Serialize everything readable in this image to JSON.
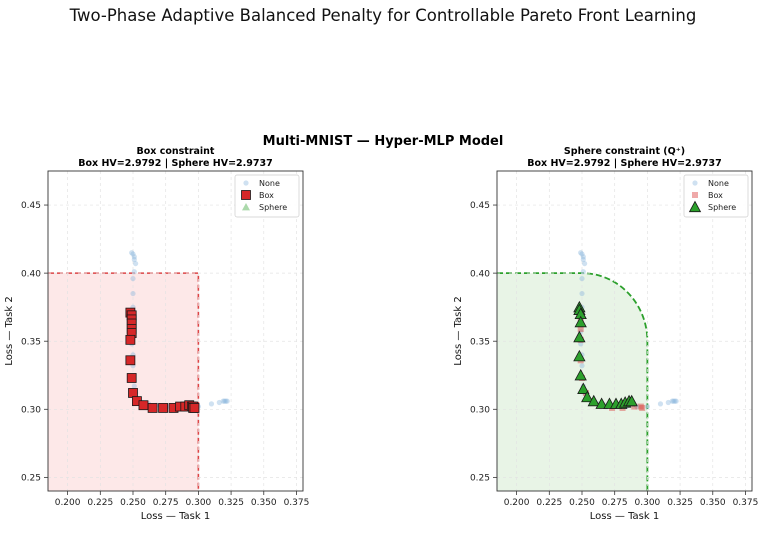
{
  "page_title": "Two-Phase Adaptive Balanced Penalty for Controllable Pareto Front Learning",
  "suptitle": "Multi-MNIST — Hyper-MLP Model",
  "colors": {
    "none": "#86b4db",
    "box": "#d62728",
    "sphere": "#2ca02c",
    "box_region": "#fde8e8",
    "sphere_region": "#e8f4e6"
  },
  "chart_data": [
    {
      "type": "scatter",
      "title": "Box constraint",
      "subtitle": "Box HV=2.9792  |  Sphere HV=2.9737",
      "xlabel": "Loss — Task 1",
      "ylabel": "Loss — Task 2",
      "xlim": [
        0.185,
        0.38
      ],
      "ylim": [
        0.24,
        0.475
      ],
      "xticks": [
        "0.200",
        "0.225",
        "0.250",
        "0.275",
        "0.300",
        "0.325",
        "0.350",
        "0.375"
      ],
      "yticks": [
        "0.25",
        "0.30",
        "0.35",
        "0.40",
        "0.45"
      ],
      "grid": true,
      "legend_position": "top-right",
      "region": {
        "shape": "box",
        "x_max": 0.3,
        "y_max": 0.4
      },
      "legend": [
        {
          "label": "None",
          "marker": "circle"
        },
        {
          "label": "Box",
          "marker": "square"
        },
        {
          "label": "Sphere",
          "marker": "triangle"
        }
      ],
      "series": [
        {
          "name": "None",
          "marker": "circle",
          "style": "faded",
          "x": [
            0.249,
            0.25,
            0.251,
            0.251,
            0.252,
            0.251,
            0.25,
            0.25,
            0.25,
            0.249,
            0.249,
            0.249,
            0.25,
            0.25,
            0.25,
            0.251,
            0.252,
            0.254,
            0.257,
            0.262,
            0.268,
            0.276,
            0.284,
            0.292,
            0.3,
            0.31,
            0.316,
            0.319,
            0.32,
            0.321,
            0.322
          ],
          "y": [
            0.415,
            0.414,
            0.412,
            0.41,
            0.407,
            0.401,
            0.396,
            0.385,
            0.375,
            0.366,
            0.357,
            0.348,
            0.34,
            0.332,
            0.324,
            0.317,
            0.312,
            0.308,
            0.305,
            0.304,
            0.303,
            0.302,
            0.302,
            0.302,
            0.302,
            0.304,
            0.305,
            0.306,
            0.306,
            0.306,
            0.306
          ]
        },
        {
          "name": "Box",
          "marker": "square",
          "style": "highlight",
          "x": [
            0.248,
            0.249,
            0.249,
            0.249,
            0.249,
            0.249,
            0.248,
            0.248,
            0.249,
            0.25,
            0.253,
            0.258,
            0.265,
            0.273,
            0.281,
            0.286,
            0.29,
            0.293,
            0.295,
            0.296,
            0.296,
            0.297
          ],
          "y": [
            0.371,
            0.369,
            0.366,
            0.363,
            0.359,
            0.356,
            0.351,
            0.336,
            0.323,
            0.312,
            0.306,
            0.303,
            0.301,
            0.301,
            0.301,
            0.302,
            0.302,
            0.303,
            0.302,
            0.302,
            0.301,
            0.301
          ]
        }
      ]
    },
    {
      "type": "scatter",
      "title": "Sphere constraint  (Q⁺)",
      "subtitle": "Box HV=2.9792  |  Sphere HV=2.9737",
      "xlabel": "Loss — Task 1",
      "ylabel": "Loss — Task 2",
      "xlim": [
        0.185,
        0.38
      ],
      "ylim": [
        0.24,
        0.475
      ],
      "xticks": [
        "0.200",
        "0.225",
        "0.250",
        "0.275",
        "0.300",
        "0.325",
        "0.350",
        "0.375"
      ],
      "yticks": [
        "0.25",
        "0.30",
        "0.35",
        "0.40",
        "0.45"
      ],
      "grid": true,
      "legend_position": "top-right",
      "region": {
        "shape": "sphere",
        "x_max": 0.3,
        "y_max": 0.4,
        "corner": [
          0.25,
          0.35
        ]
      },
      "legend": [
        {
          "label": "None",
          "marker": "circle"
        },
        {
          "label": "Box",
          "marker": "square"
        },
        {
          "label": "Sphere",
          "marker": "triangle"
        }
      ],
      "series": [
        {
          "name": "None",
          "marker": "circle",
          "style": "faded",
          "x": [
            0.249,
            0.25,
            0.251,
            0.251,
            0.252,
            0.251,
            0.25,
            0.25,
            0.25,
            0.249,
            0.249,
            0.249,
            0.25,
            0.25,
            0.25,
            0.251,
            0.252,
            0.254,
            0.257,
            0.262,
            0.268,
            0.276,
            0.284,
            0.292,
            0.3,
            0.31,
            0.316,
            0.319,
            0.32,
            0.321,
            0.322
          ],
          "y": [
            0.415,
            0.414,
            0.412,
            0.41,
            0.407,
            0.401,
            0.396,
            0.385,
            0.375,
            0.366,
            0.357,
            0.348,
            0.34,
            0.332,
            0.324,
            0.317,
            0.312,
            0.308,
            0.305,
            0.304,
            0.303,
            0.302,
            0.302,
            0.302,
            0.302,
            0.304,
            0.305,
            0.306,
            0.306,
            0.306,
            0.306
          ]
        },
        {
          "name": "Box",
          "marker": "square",
          "style": "faded",
          "x": [
            0.248,
            0.249,
            0.249,
            0.249,
            0.249,
            0.25,
            0.253,
            0.258,
            0.265,
            0.273,
            0.281,
            0.29,
            0.295,
            0.296
          ],
          "y": [
            0.371,
            0.366,
            0.359,
            0.351,
            0.336,
            0.323,
            0.312,
            0.306,
            0.303,
            0.301,
            0.301,
            0.302,
            0.302,
            0.301
          ]
        },
        {
          "name": "Sphere",
          "marker": "triangle",
          "style": "highlight",
          "x": [
            0.248,
            0.248,
            0.249,
            0.249,
            0.248,
            0.248,
            0.249,
            0.251,
            0.254,
            0.259,
            0.265,
            0.271,
            0.276,
            0.28,
            0.283,
            0.286,
            0.288
          ],
          "y": [
            0.375,
            0.373,
            0.37,
            0.364,
            0.353,
            0.339,
            0.325,
            0.315,
            0.309,
            0.306,
            0.304,
            0.304,
            0.304,
            0.304,
            0.305,
            0.306,
            0.306
          ]
        }
      ]
    }
  ]
}
